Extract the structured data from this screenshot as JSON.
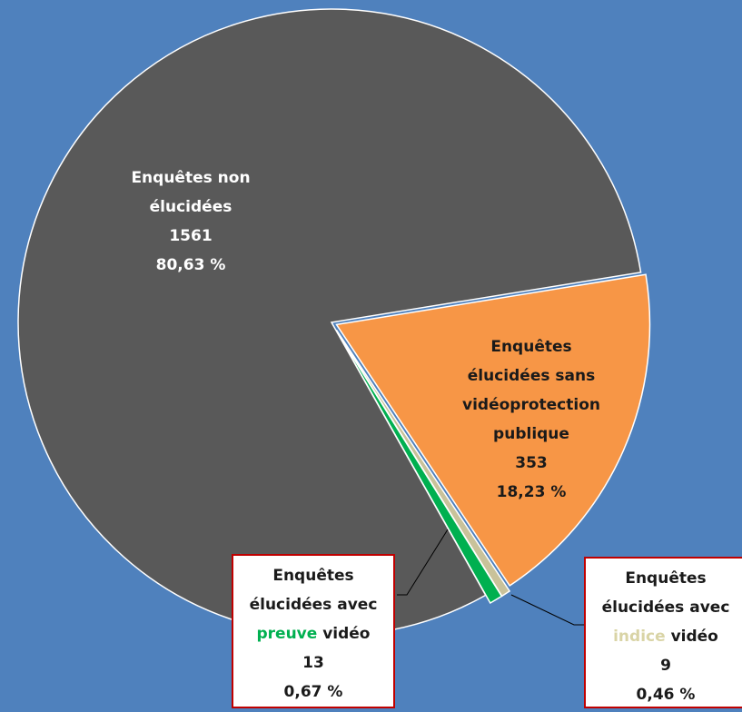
{
  "chart_data": {
    "type": "pie",
    "categories": [
      "Enquêtes élucidées sans vidéoprotection publique",
      "Enquêtes élucidées avec indice vidéo",
      "Enquêtes élucidées avec preuve vidéo",
      "Enquêtes non élucidées"
    ],
    "values": [
      353,
      9,
      13,
      1561
    ],
    "percent_labels": [
      "18,23 %",
      "0,46 %",
      "0,67 %",
      "80,63 %"
    ],
    "colors": [
      "#f79646",
      "#c9c29a",
      "#00b050",
      "#595959"
    ]
  }
}
